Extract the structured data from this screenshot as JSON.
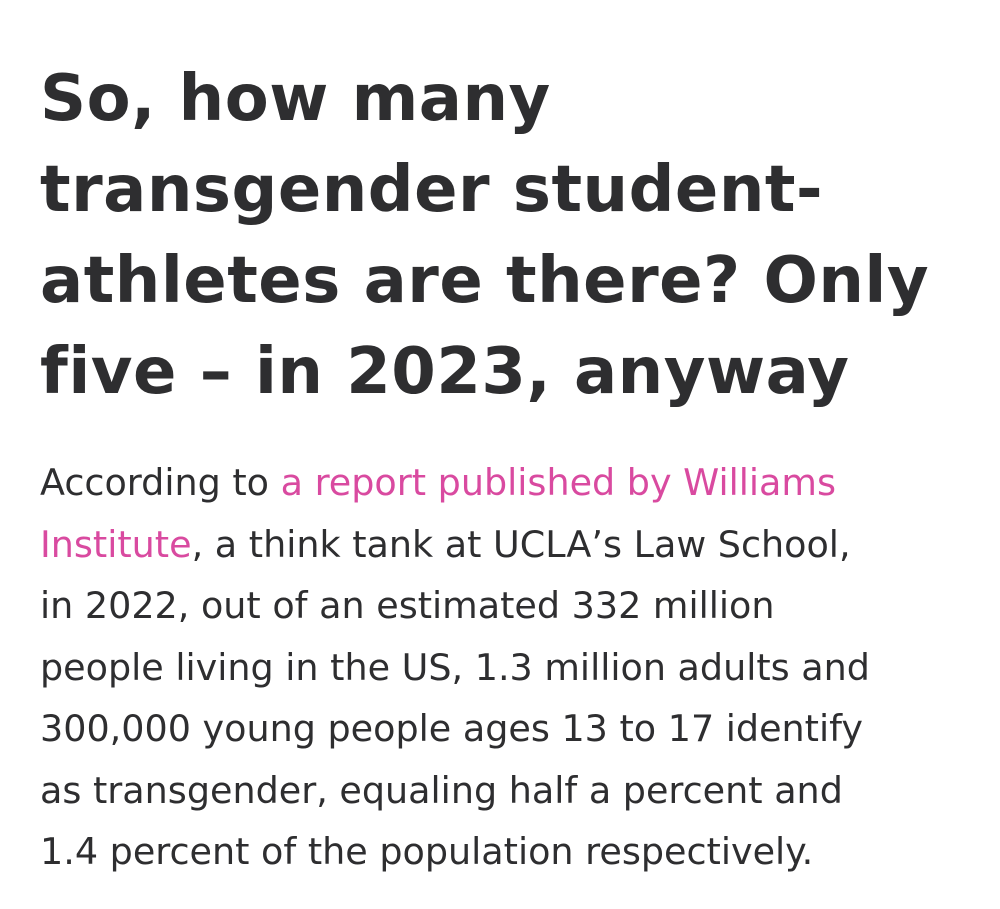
{
  "headline": {
    "lines": [
      "So, how many",
      "transgender student-",
      "athletes are there? Only",
      "five – in 2023, anyway"
    ]
  },
  "paragraph": {
    "prefix": "According to ",
    "link_line1": "a report published by Williams",
    "link_line2": "Institute",
    "after_link": ", a think tank at UCLA’s Law School,",
    "line3": "in 2022, out of an estimated 332 million",
    "line4": "people living in the US, 1.3 million adults and",
    "line5": "300,000 young people ages 13 to 17 identify",
    "line6": "as transgender, equaling half a percent and",
    "line7": "1.4 percent of the population respectively."
  },
  "colors": {
    "text": "#2e2e30",
    "link": "#d94aa0",
    "background": "#ffffff"
  }
}
